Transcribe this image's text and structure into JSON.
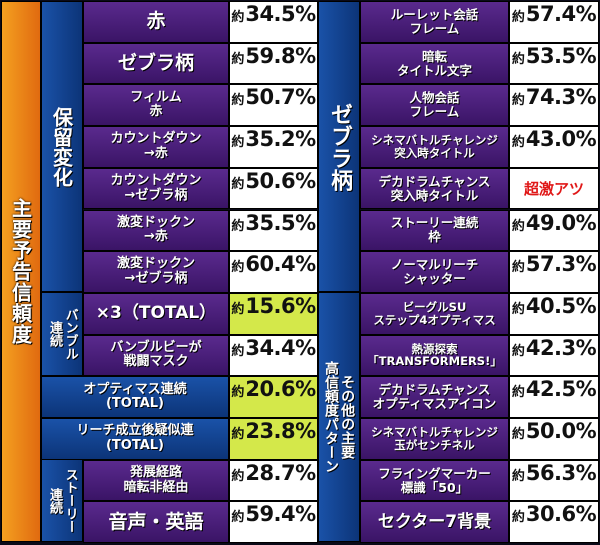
{
  "prefix": "約",
  "left": {
    "main_label": "主要予告信頼度",
    "group_horyuu": "保留変化",
    "group_banbull": "バンブル\n連続",
    "group_story": "ストーリー\n連続",
    "rows": [
      {
        "label": "赤",
        "value": "34.5%",
        "highlight": false
      },
      {
        "label": "ゼブラ柄",
        "value": "59.8%",
        "highlight": false
      },
      {
        "label": "フィルム\n赤",
        "value": "50.7%",
        "highlight": false
      },
      {
        "label": "カウントダウン\n→赤",
        "value": "35.2%",
        "highlight": false
      },
      {
        "label": "カウントダウン\n→ゼブラ柄",
        "value": "50.6%",
        "highlight": false
      },
      {
        "label": "激変ドックン\n→赤",
        "value": "35.5%",
        "highlight": false
      },
      {
        "label": "激変ドックン\n→ゼブラ柄",
        "value": "60.4%",
        "highlight": false
      },
      {
        "label": "×3（TOTAL）",
        "value": "15.6%",
        "highlight": true
      },
      {
        "label": "バンブルビーが\n戦闘マスク",
        "value": "34.4%",
        "highlight": false
      },
      {
        "label": "オプティマス連続\n(TOTAL)",
        "value": "20.6%",
        "highlight": true
      },
      {
        "label": "リーチ成立後疑似連\n(TOTAL)",
        "value": "23.8%",
        "highlight": true
      },
      {
        "label": "発展経路\n暗転非経由",
        "value": "28.7%",
        "highlight": false
      },
      {
        "label": "音声・英語",
        "value": "59.4%",
        "highlight": false
      }
    ]
  },
  "right": {
    "group_zebra": "ゼブラ柄",
    "group_other": "その他の主要\n高信頼度パターン",
    "rows": [
      {
        "label": "ルーレット会話\nフレーム",
        "value": "57.4%"
      },
      {
        "label": "暗転\nタイトル文字",
        "value": "53.5%"
      },
      {
        "label": "人物会話\nフレーム",
        "value": "74.3%"
      },
      {
        "label": "シネマバトルチャレンジ\n突入時タイトル",
        "value": "43.0%"
      },
      {
        "label": "デカドラムチャンス\n突入時タイトル",
        "value": "超激アツ",
        "special": true
      },
      {
        "label": "ストーリー連続\n枠",
        "value": "49.0%"
      },
      {
        "label": "ノーマルリーチ\nシャッター",
        "value": "57.3%"
      },
      {
        "label": "ビーグルSU\nステップ4オプティマス",
        "value": "40.5%"
      },
      {
        "label": "熱源探索\n「TRANSFORMERS!」",
        "value": "42.3%"
      },
      {
        "label": "デカドラムチャンス\nオプティマスアイコン",
        "value": "42.5%"
      },
      {
        "label": "シネマバトルチャレンジ\n玉がセンチネル",
        "value": "50.0%"
      },
      {
        "label": "フライングマーカー\n標識「50」",
        "value": "56.3%"
      },
      {
        "label": "セクター7背景",
        "value": "30.6%"
      }
    ]
  },
  "colors": {
    "orange": "#f08a1a",
    "blue": "#1a4a9a",
    "purple": "#4a2080",
    "highlight": "#d4e84a",
    "red": "#e01818"
  }
}
